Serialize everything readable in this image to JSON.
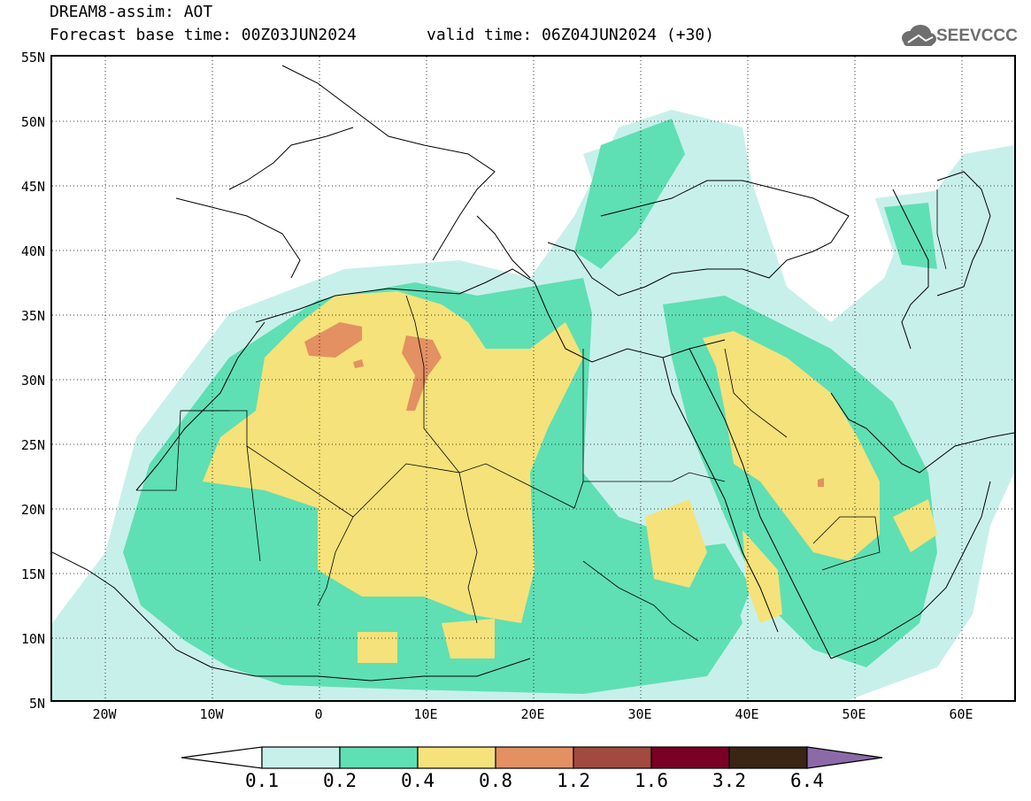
{
  "header": {
    "line1": "DREAM8-assim: AOT",
    "line2": "Forecast base time: 00Z03JUN2024",
    "line3": "valid time: 06Z04JUN2024 (+30)"
  },
  "logo": {
    "text": "SEEVCCC",
    "icon": "cloud-logo-icon"
  },
  "map": {
    "lat_labels": [
      "55N",
      "50N",
      "45N",
      "40N",
      "35N",
      "30N",
      "25N",
      "20N",
      "15N",
      "10N",
      "5N"
    ],
    "lon_labels": [
      "20W",
      "10W",
      "0",
      "10E",
      "20E",
      "30E",
      "40E",
      "50E",
      "60E"
    ],
    "projection_extent": {
      "lon": [
        -25,
        65
      ],
      "lat": [
        5,
        55
      ]
    }
  },
  "colorbar": {
    "labels": [
      "0.1",
      "0.2",
      "0.4",
      "0.8",
      "1.2",
      "1.6",
      "3.2",
      "6.4"
    ],
    "colors": {
      "below": "#ffffff",
      "c1": "#c8f0ea",
      "c2": "#5fdfb4",
      "c3": "#f5e27a",
      "c4": "#e39062",
      "c5": "#a24a3f",
      "c6": "#7a0025",
      "c7": "#3a2414",
      "above": "#8c6aa8"
    }
  }
}
